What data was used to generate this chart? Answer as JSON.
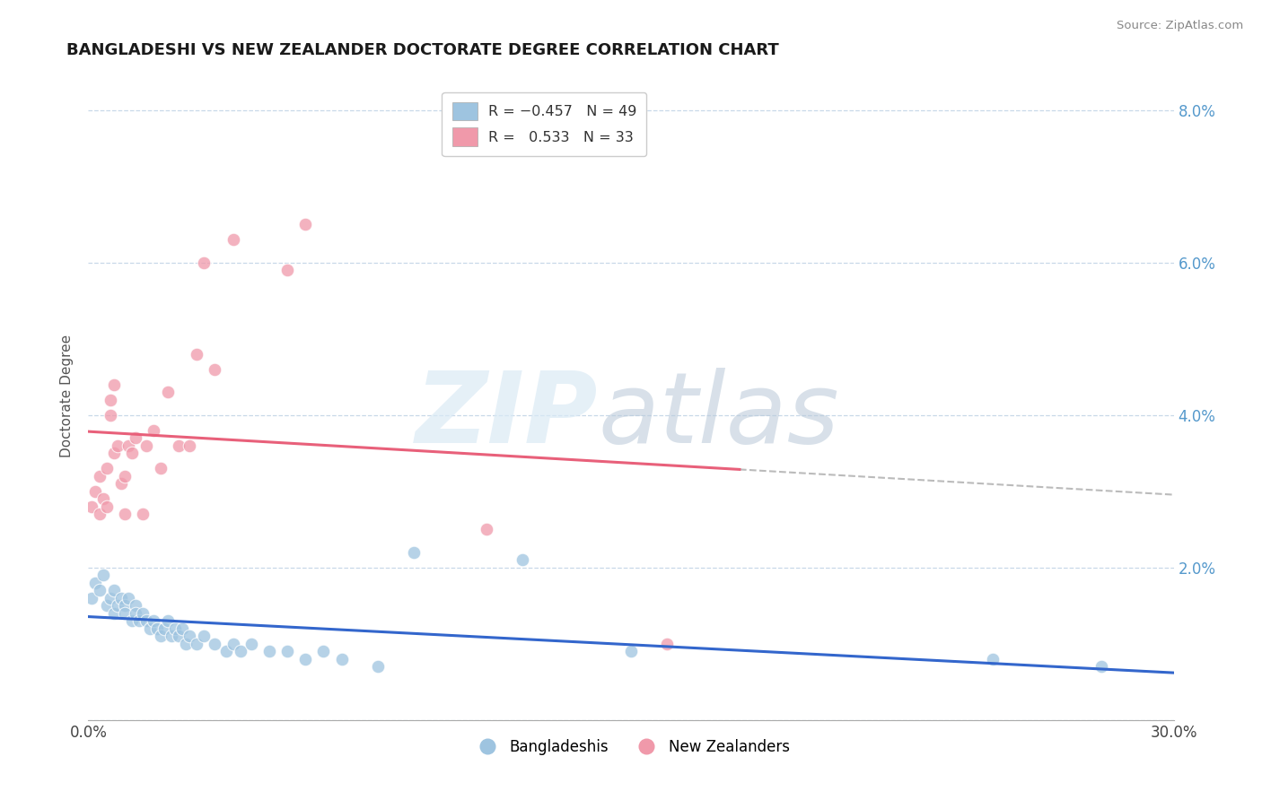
{
  "title": "BANGLADESHI VS NEW ZEALANDER DOCTORATE DEGREE CORRELATION CHART",
  "source": "Source: ZipAtlas.com",
  "ylabel": "Doctorate Degree",
  "xlim": [
    0.0,
    0.3
  ],
  "ylim": [
    0.0,
    0.085
  ],
  "xtick_vals": [
    0.0,
    0.05,
    0.1,
    0.15,
    0.2,
    0.25,
    0.3
  ],
  "xtick_labels": [
    "0.0%",
    "",
    "",
    "",
    "",
    "",
    "30.0%"
  ],
  "ytick_vals": [
    0.0,
    0.02,
    0.04,
    0.06,
    0.08
  ],
  "ytick_right_labels": [
    "",
    "2.0%",
    "4.0%",
    "6.0%",
    "8.0%"
  ],
  "legend_bottom_labels": [
    "Bangladeshis",
    "New Zealanders"
  ],
  "blue_color": "#9ec4e0",
  "pink_color": "#f099aa",
  "blue_line_color": "#3366cc",
  "pink_line_color": "#e8607a",
  "background_color": "#ffffff",
  "grid_color": "#c8d8e8",
  "blue_scatter_x": [
    0.001,
    0.002,
    0.003,
    0.004,
    0.005,
    0.006,
    0.007,
    0.007,
    0.008,
    0.009,
    0.01,
    0.01,
    0.011,
    0.012,
    0.013,
    0.013,
    0.014,
    0.015,
    0.016,
    0.017,
    0.018,
    0.019,
    0.02,
    0.021,
    0.022,
    0.023,
    0.024,
    0.025,
    0.026,
    0.027,
    0.028,
    0.03,
    0.032,
    0.035,
    0.038,
    0.04,
    0.042,
    0.045,
    0.05,
    0.055,
    0.06,
    0.065,
    0.07,
    0.08,
    0.09,
    0.12,
    0.15,
    0.25,
    0.28
  ],
  "blue_scatter_y": [
    0.016,
    0.018,
    0.017,
    0.019,
    0.015,
    0.016,
    0.014,
    0.017,
    0.015,
    0.016,
    0.015,
    0.014,
    0.016,
    0.013,
    0.015,
    0.014,
    0.013,
    0.014,
    0.013,
    0.012,
    0.013,
    0.012,
    0.011,
    0.012,
    0.013,
    0.011,
    0.012,
    0.011,
    0.012,
    0.01,
    0.011,
    0.01,
    0.011,
    0.01,
    0.009,
    0.01,
    0.009,
    0.01,
    0.009,
    0.009,
    0.008,
    0.009,
    0.008,
    0.007,
    0.022,
    0.021,
    0.009,
    0.008,
    0.007
  ],
  "pink_scatter_x": [
    0.001,
    0.002,
    0.003,
    0.003,
    0.004,
    0.005,
    0.005,
    0.006,
    0.006,
    0.007,
    0.007,
    0.008,
    0.009,
    0.01,
    0.01,
    0.011,
    0.012,
    0.013,
    0.015,
    0.016,
    0.018,
    0.02,
    0.022,
    0.025,
    0.028,
    0.03,
    0.032,
    0.035,
    0.04,
    0.055,
    0.06,
    0.11,
    0.16
  ],
  "pink_scatter_y": [
    0.028,
    0.03,
    0.032,
    0.027,
    0.029,
    0.033,
    0.028,
    0.042,
    0.04,
    0.044,
    0.035,
    0.036,
    0.031,
    0.032,
    0.027,
    0.036,
    0.035,
    0.037,
    0.027,
    0.036,
    0.038,
    0.033,
    0.043,
    0.036,
    0.036,
    0.048,
    0.06,
    0.046,
    0.063,
    0.059,
    0.065,
    0.025,
    0.01
  ]
}
